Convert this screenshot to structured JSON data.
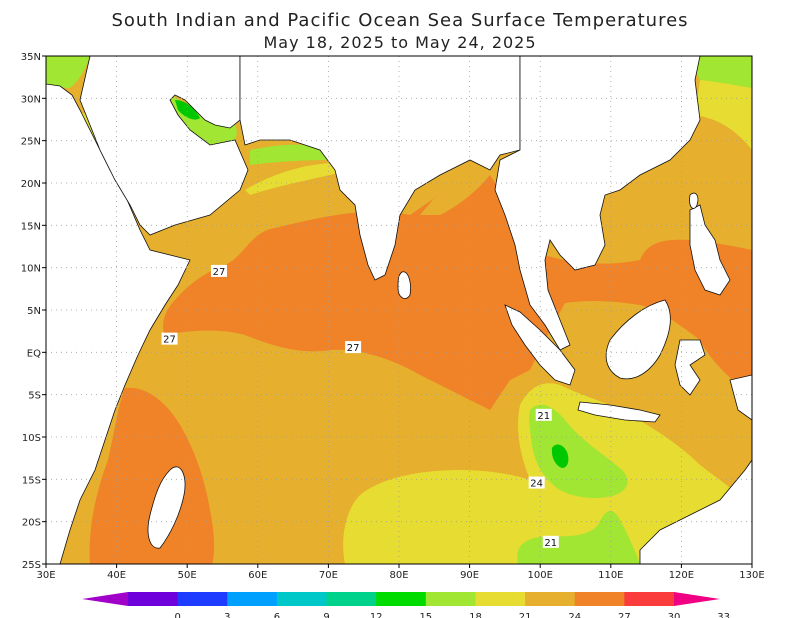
{
  "title": "South Indian and Pacific Ocean Sea Surface Temperatures",
  "subtitle": "May 18, 2025 to May 24, 2025",
  "colors": {
    "land": "#ffffff",
    "sst_18_21": "#a0e632",
    "sst_21_24": "#e6dc32",
    "sst_24_27": "#e6af2d",
    "sst_27_30": "#f08228",
    "green_high": "#00c800",
    "grid": "#a0a0a0"
  },
  "chart_data": {
    "type": "heatmap",
    "title": "South Indian and Pacific Ocean Sea Surface Temperatures",
    "subtitle": "May 18, 2025 to May 24, 2025",
    "x_ticks": [
      "30E",
      "40E",
      "50E",
      "60E",
      "70E",
      "80E",
      "90E",
      "100E",
      "110E",
      "120E",
      "130E"
    ],
    "y_ticks": [
      "35N",
      "30N",
      "25N",
      "20N",
      "15N",
      "10N",
      "5N",
      "EQ",
      "5S",
      "10S",
      "15S",
      "20S",
      "25S"
    ],
    "xlim": [
      30,
      130
    ],
    "ylim": [
      -25,
      35
    ],
    "grid": true,
    "colorbar": {
      "labels": [
        "0",
        "3",
        "6",
        "9",
        "12",
        "15",
        "18",
        "21",
        "24",
        "27",
        "30",
        "33"
      ],
      "colors": [
        "#a000c8",
        "#6e00dc",
        "#1e3cff",
        "#00a0ff",
        "#00c8c8",
        "#00d28c",
        "#00dc00",
        "#a0e632",
        "#e6dc32",
        "#e6af2d",
        "#f08228",
        "#fa3c3c",
        "#f00082"
      ]
    },
    "contour_labels": [
      {
        "text": "27",
        "lon": 54.5,
        "lat": 9.5
      },
      {
        "text": "27",
        "lon": 47.5,
        "lat": 1.5
      },
      {
        "text": "27",
        "lon": 73.5,
        "lat": 0.5
      },
      {
        "text": "21",
        "lon": 100.5,
        "lat": -7.5
      },
      {
        "text": "24",
        "lon": 99.5,
        "lat": -15.5
      },
      {
        "text": "21",
        "lon": 101.5,
        "lat": -22.5
      }
    ]
  }
}
